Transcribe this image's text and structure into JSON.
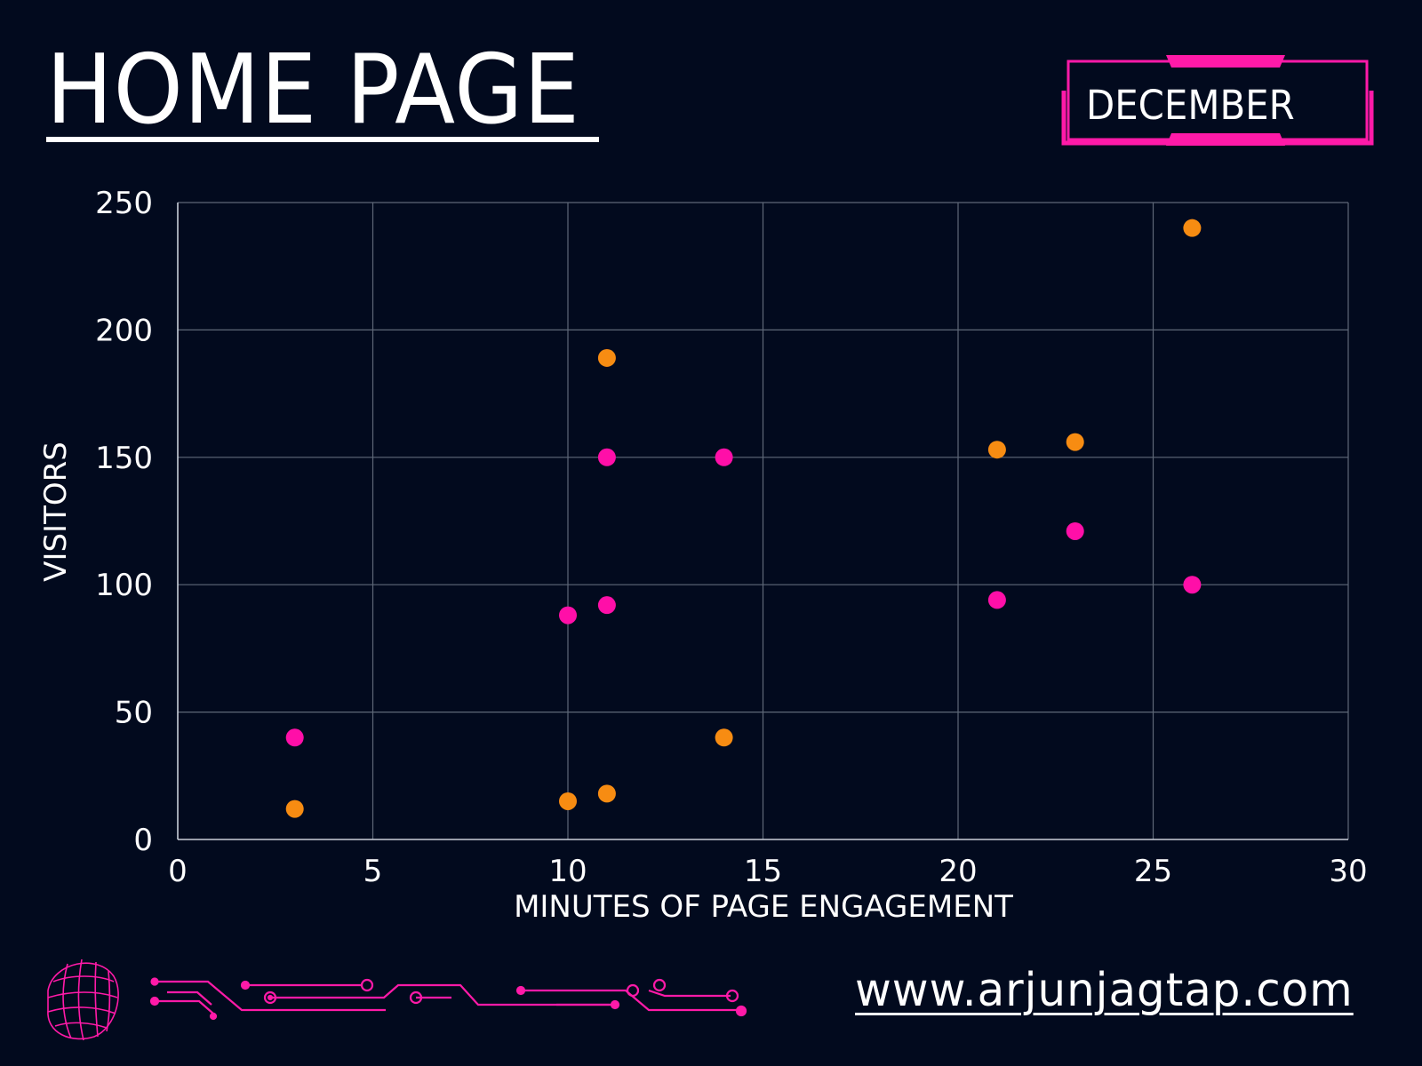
{
  "header": {
    "title": "HOME PAGE",
    "month": "DECEMBER"
  },
  "footer": {
    "website": "www.arjunjagtap.com",
    "logo_icon": "wireframe-globe-icon",
    "decoration_icon": "circuit-lines-icon"
  },
  "colors": {
    "background": "#020a1e",
    "accent": "#ff1aa8",
    "series_pink": "#ff0fa8",
    "series_orange": "#f78c12",
    "grid": "#5f6878",
    "text": "#ffffff"
  },
  "chart_data": {
    "type": "scatter",
    "title": "",
    "xlabel": "MINUTES OF PAGE ENGAGEMENT",
    "ylabel": "VISITORS",
    "xlim": [
      0,
      30
    ],
    "ylim": [
      0,
      250
    ],
    "xticks": [
      0,
      5,
      10,
      15,
      20,
      25,
      30
    ],
    "yticks": [
      0,
      50,
      100,
      150,
      200,
      250
    ],
    "grid": true,
    "legend": "none",
    "series": [
      {
        "color": "#ff0fa8",
        "points": [
          {
            "x": 3,
            "y": 40
          },
          {
            "x": 10,
            "y": 88
          },
          {
            "x": 11,
            "y": 92
          },
          {
            "x": 11,
            "y": 150
          },
          {
            "x": 14,
            "y": 150
          },
          {
            "x": 21,
            "y": 94
          },
          {
            "x": 23,
            "y": 121
          },
          {
            "x": 26,
            "y": 100
          }
        ]
      },
      {
        "color": "#f78c12",
        "points": [
          {
            "x": 3,
            "y": 12
          },
          {
            "x": 10,
            "y": 15
          },
          {
            "x": 11,
            "y": 18
          },
          {
            "x": 11,
            "y": 189
          },
          {
            "x": 14,
            "y": 40
          },
          {
            "x": 21,
            "y": 153
          },
          {
            "x": 23,
            "y": 156
          },
          {
            "x": 26,
            "y": 240
          }
        ]
      }
    ]
  }
}
